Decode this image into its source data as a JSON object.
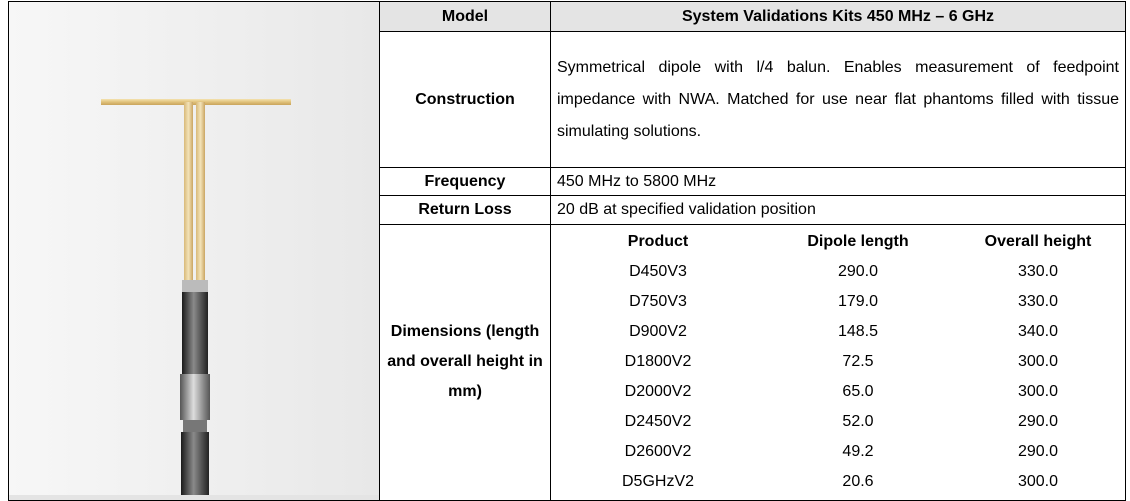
{
  "table": {
    "model": {
      "label": "Model",
      "value": "System Validations Kits 450 MHz – 6 GHz"
    },
    "construction": {
      "label": "Construction",
      "value": "Symmetrical dipole with l/4 balun. Enables measurement of feedpoint impedance with NWA. Matched for use near flat phantoms filled with tissue simulating solutions."
    },
    "frequency": {
      "label": "Frequency",
      "value": "450 MHz to 5800 MHz"
    },
    "return_loss": {
      "label": "Return Loss",
      "value": "20 dB at specified validation position"
    },
    "dimensions": {
      "label": "Dimensions (length and overall height in mm)",
      "columns": [
        "Product",
        "Dipole length",
        "Overall height"
      ],
      "rows": [
        [
          "D450V3",
          "290.0",
          "330.0"
        ],
        [
          "D750V3",
          "179.0",
          "330.0"
        ],
        [
          "D900V2",
          "148.5",
          "340.0"
        ],
        [
          "D1800V2",
          "72.5",
          "300.0"
        ],
        [
          "D2000V2",
          "65.0",
          "300.0"
        ],
        [
          "D2450V2",
          "52.0",
          "290.0"
        ],
        [
          "D2600V2",
          "49.2",
          "290.0"
        ],
        [
          "D5GHzV2",
          "20.6",
          "300.0"
        ]
      ]
    }
  }
}
